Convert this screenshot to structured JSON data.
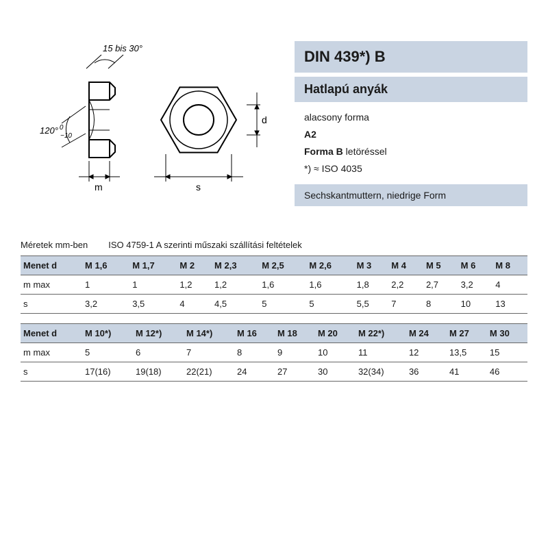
{
  "header": {
    "title": "DIN 439*) B",
    "subtitle": "Hatlapú anyák",
    "line1": "alacsony forma",
    "line2_bold": "A2",
    "line3_a": "Forma B",
    "line3_b": " letöréssel",
    "line4": "*) ≈ ISO 4035",
    "bottom": "Sechskantmuttern, niedrige Form"
  },
  "diagram": {
    "angle_top": "15 bis 30°",
    "angle_left_a": "120°",
    "angle_left_b": "0",
    "angle_left_c": "−10",
    "dim_m": "m",
    "dim_s": "s",
    "dim_d": "d"
  },
  "caption": {
    "left": "Méretek mm-ben",
    "right": "ISO 4759-1 A szerinti műszaki szállítási feltételek"
  },
  "table1": {
    "header_label": "Menet d",
    "columns": [
      "M 1,6",
      "M 1,7",
      "M 2",
      "M 2,3",
      "M 2,5",
      "M 2,6",
      "M 3",
      "M 4",
      "M 5",
      "M 6",
      "M 8"
    ],
    "rows": [
      {
        "label": "m max",
        "cells": [
          "1",
          "1",
          "1,2",
          "1,2",
          "1,6",
          "1,6",
          "1,8",
          "2,2",
          "2,7",
          "3,2",
          "4"
        ]
      },
      {
        "label": "s",
        "cells": [
          "3,2",
          "3,5",
          "4",
          "4,5",
          "5",
          "5",
          "5,5",
          "7",
          "8",
          "10",
          "13"
        ]
      }
    ]
  },
  "table2": {
    "header_label": "Menet d",
    "columns": [
      "M 10*)",
      "M 12*)",
      "M 14*)",
      "M 16",
      "M 18",
      "M 20",
      "M 22*)",
      "M 24",
      "M 27",
      "M 30"
    ],
    "rows": [
      {
        "label": "m max",
        "cells": [
          "5",
          "6",
          "7",
          "8",
          "9",
          "10",
          "11",
          "12",
          "13,5",
          "15"
        ]
      },
      {
        "label": "s",
        "cells": [
          "17(16)",
          "19(18)",
          "22(21)",
          "24",
          "27",
          "30",
          "32(34)",
          "36",
          "41",
          "46"
        ]
      }
    ]
  },
  "colors": {
    "panel_bg": "#c9d4e2",
    "text": "#1a1a1a",
    "border": "#666666",
    "stroke": "#000000"
  }
}
